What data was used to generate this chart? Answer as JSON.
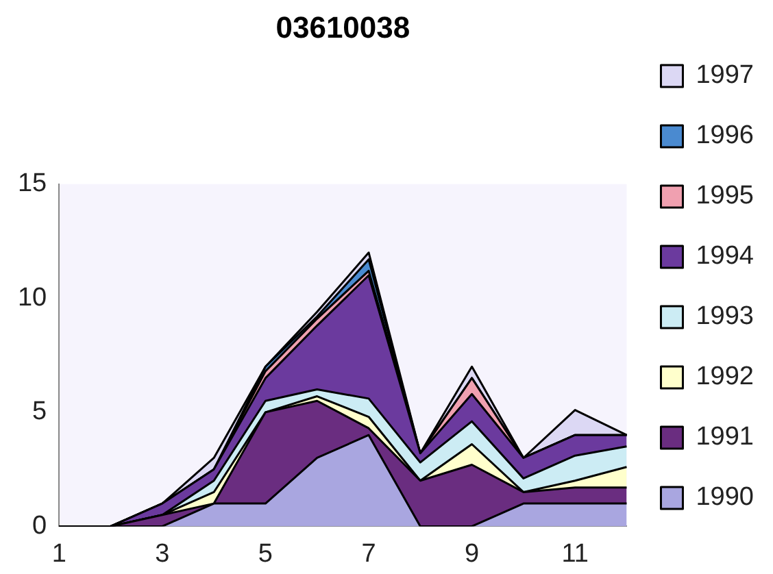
{
  "chart_data": {
    "type": "area",
    "title": "03610038",
    "stacked": true,
    "categories": [
      "1",
      null,
      "3",
      null,
      "5",
      null,
      "7",
      null,
      "9",
      null,
      "11",
      null
    ],
    "ylim": [
      0,
      15
    ],
    "yticks": [
      0,
      5,
      10,
      15
    ],
    "grid": false,
    "legend": "right",
    "series": [
      {
        "name": "1990",
        "color": "#a9a6e0",
        "values": [
          0,
          0,
          0,
          1,
          1,
          3,
          4,
          0,
          0,
          1,
          1,
          1
        ]
      },
      {
        "name": "1991",
        "color": "#6a2d80",
        "values": [
          0,
          0,
          0.5,
          0,
          4,
          2.5,
          0.3,
          2,
          2.7,
          0.5,
          0.7,
          0.7
        ]
      },
      {
        "name": "1992",
        "color": "#ffffcc",
        "values": [
          0,
          0,
          0,
          0.5,
          0,
          0.2,
          0.5,
          0,
          0.9,
          0,
          0.3,
          0.9
        ]
      },
      {
        "name": "1993",
        "color": "#ccecf4",
        "values": [
          0,
          0,
          0,
          0.5,
          0.5,
          0.3,
          0.8,
          0.8,
          1,
          0.6,
          1.1,
          0.9
        ]
      },
      {
        "name": "1994",
        "color": "#6b3a9e",
        "values": [
          0,
          0,
          0.5,
          0.5,
          1,
          2.8,
          5.4,
          0.4,
          1.2,
          0.9,
          0.9,
          0.5
        ]
      },
      {
        "name": "1995",
        "color": "#f0a0b0",
        "values": [
          0,
          0,
          0,
          0,
          0.3,
          0.3,
          0.2,
          0,
          0.7,
          0,
          0,
          0
        ]
      },
      {
        "name": "1996",
        "color": "#4a8ad0",
        "values": [
          0,
          0,
          0,
          0,
          0.2,
          0.1,
          0.5,
          0,
          0,
          0,
          0,
          0
        ]
      },
      {
        "name": "1997",
        "color": "#dcd8f4",
        "values": [
          0,
          0,
          0,
          0.5,
          0,
          0.2,
          0.3,
          0,
          0.5,
          0,
          1.1,
          0
        ]
      }
    ]
  }
}
